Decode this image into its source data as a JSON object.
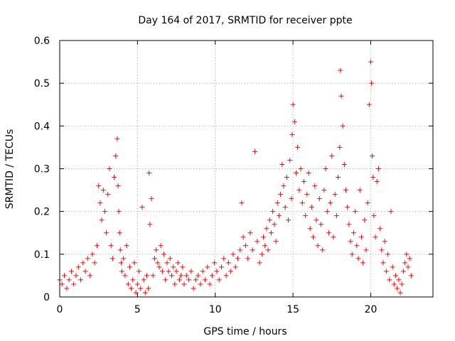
{
  "chart_data": {
    "type": "scatter",
    "title": "Day 164 of 2017, SRMTID for receiver ppte",
    "xlabel": "GPS time / hours",
    "ylabel": "SRMTID / TECUs",
    "xlim": [
      0,
      24
    ],
    "ylim": [
      0,
      0.6
    ],
    "xticks": [
      0,
      5,
      10,
      15,
      20
    ],
    "xtick_labels": [
      "0",
      "5",
      "10",
      "15",
      "20"
    ],
    "yticks": [
      0,
      0.1,
      0.2,
      0.3,
      0.4,
      0.5,
      0.6
    ],
    "ytick_labels": [
      "0",
      "0.1",
      "0.2",
      "0.3",
      "0.4",
      "0.5",
      "0.6"
    ],
    "grid": true,
    "marker": "+",
    "color": "#ff0000",
    "series": [
      {
        "name": "SRMTID",
        "x": [
          0.0,
          0.15,
          0.3,
          0.45,
          0.6,
          0.75,
          0.9,
          1.05,
          1.2,
          1.35,
          1.5,
          1.65,
          1.8,
          1.95,
          2.1,
          2.25,
          2.4,
          2.5,
          2.6,
          2.7,
          2.8,
          2.9,
          3.0,
          3.1,
          3.2,
          3.3,
          3.4,
          3.5,
          3.6,
          3.7,
          3.75,
          3.8,
          3.85,
          3.9,
          3.95,
          4.0,
          4.1,
          4.2,
          4.3,
          4.4,
          4.5,
          4.6,
          4.7,
          4.8,
          4.9,
          5.0,
          5.1,
          5.2,
          5.3,
          5.4,
          5.5,
          5.6,
          5.7,
          5.75,
          5.8,
          5.9,
          6.0,
          6.1,
          6.2,
          6.3,
          6.4,
          6.5,
          6.6,
          6.7,
          6.8,
          6.9,
          7.0,
          7.1,
          7.2,
          7.3,
          7.4,
          7.5,
          7.6,
          7.7,
          7.8,
          7.9,
          8.0,
          8.15,
          8.3,
          8.45,
          8.6,
          8.75,
          8.9,
          9.05,
          9.2,
          9.35,
          9.5,
          9.65,
          9.8,
          9.95,
          10.1,
          10.25,
          10.4,
          10.55,
          10.7,
          10.85,
          11.0,
          11.15,
          11.3,
          11.45,
          11.6,
          11.7,
          11.8,
          11.95,
          12.1,
          12.25,
          12.4,
          12.55,
          12.7,
          12.85,
          13.0,
          13.1,
          13.2,
          13.3,
          13.4,
          13.5,
          13.6,
          13.7,
          13.8,
          13.9,
          14.0,
          14.1,
          14.2,
          14.3,
          14.4,
          14.5,
          14.6,
          14.7,
          14.8,
          14.9,
          14.95,
          15.0,
          15.1,
          15.2,
          15.3,
          15.4,
          15.5,
          15.6,
          15.7,
          15.8,
          15.9,
          16.0,
          16.1,
          16.2,
          16.3,
          16.4,
          16.5,
          16.6,
          16.7,
          16.8,
          16.9,
          17.0,
          17.1,
          17.2,
          17.3,
          17.4,
          17.5,
          17.6,
          17.7,
          17.8,
          17.9,
          18.0,
          18.05,
          18.1,
          18.2,
          18.3,
          18.4,
          18.5,
          18.6,
          18.7,
          18.8,
          18.9,
          19.0,
          19.1,
          19.2,
          19.3,
          19.4,
          19.5,
          19.6,
          19.7,
          19.8,
          19.9,
          20.0,
          20.05,
          20.1,
          20.15,
          20.2,
          20.3,
          20.4,
          20.5,
          20.6,
          20.7,
          20.8,
          20.9,
          21.0,
          21.1,
          21.2,
          21.3,
          21.4,
          21.5,
          21.6,
          21.7,
          21.8,
          21.9,
          22.0,
          22.1,
          22.2,
          22.3,
          22.4,
          22.5,
          22.6
        ],
        "y": [
          0.04,
          0.03,
          0.05,
          0.02,
          0.04,
          0.06,
          0.03,
          0.05,
          0.07,
          0.04,
          0.08,
          0.06,
          0.09,
          0.05,
          0.1,
          0.08,
          0.12,
          0.26,
          0.22,
          0.18,
          0.25,
          0.2,
          0.15,
          0.24,
          0.3,
          0.12,
          0.09,
          0.28,
          0.33,
          0.37,
          0.26,
          0.2,
          0.15,
          0.11,
          0.08,
          0.06,
          0.09,
          0.05,
          0.12,
          0.03,
          0.07,
          0.02,
          0.04,
          0.08,
          0.01,
          0.03,
          0.06,
          0.02,
          0.21,
          0.04,
          0.01,
          0.05,
          0.02,
          0.29,
          0.17,
          0.23,
          0.05,
          0.09,
          0.11,
          0.08,
          0.07,
          0.12,
          0.06,
          0.1,
          0.04,
          0.08,
          0.06,
          0.09,
          0.05,
          0.07,
          0.03,
          0.06,
          0.08,
          0.04,
          0.05,
          0.07,
          0.03,
          0.05,
          0.04,
          0.06,
          0.02,
          0.04,
          0.05,
          0.03,
          0.06,
          0.04,
          0.07,
          0.03,
          0.05,
          0.08,
          0.06,
          0.04,
          0.07,
          0.09,
          0.05,
          0.08,
          0.06,
          0.1,
          0.07,
          0.09,
          0.11,
          0.22,
          0.14,
          0.12,
          0.09,
          0.15,
          0.11,
          0.34,
          0.13,
          0.08,
          0.1,
          0.14,
          0.12,
          0.16,
          0.11,
          0.18,
          0.15,
          0.2,
          0.17,
          0.13,
          0.22,
          0.19,
          0.24,
          0.31,
          0.26,
          0.21,
          0.28,
          0.18,
          0.32,
          0.23,
          0.38,
          0.45,
          0.41,
          0.29,
          0.35,
          0.25,
          0.3,
          0.22,
          0.27,
          0.19,
          0.24,
          0.29,
          0.16,
          0.21,
          0.14,
          0.26,
          0.18,
          0.12,
          0.23,
          0.17,
          0.11,
          0.25,
          0.3,
          0.2,
          0.15,
          0.22,
          0.33,
          0.14,
          0.24,
          0.19,
          0.28,
          0.35,
          0.53,
          0.47,
          0.4,
          0.31,
          0.25,
          0.21,
          0.17,
          0.13,
          0.1,
          0.15,
          0.2,
          0.12,
          0.09,
          0.25,
          0.14,
          0.08,
          0.18,
          0.11,
          0.22,
          0.45,
          0.55,
          0.5,
          0.33,
          0.28,
          0.19,
          0.14,
          0.27,
          0.3,
          0.16,
          0.11,
          0.08,
          0.13,
          0.06,
          0.1,
          0.04,
          0.2,
          0.07,
          0.03,
          0.05,
          0.02,
          0.04,
          0.01,
          0.03,
          0.06,
          0.08,
          0.1,
          0.07,
          0.09,
          0.05
        ]
      }
    ]
  }
}
